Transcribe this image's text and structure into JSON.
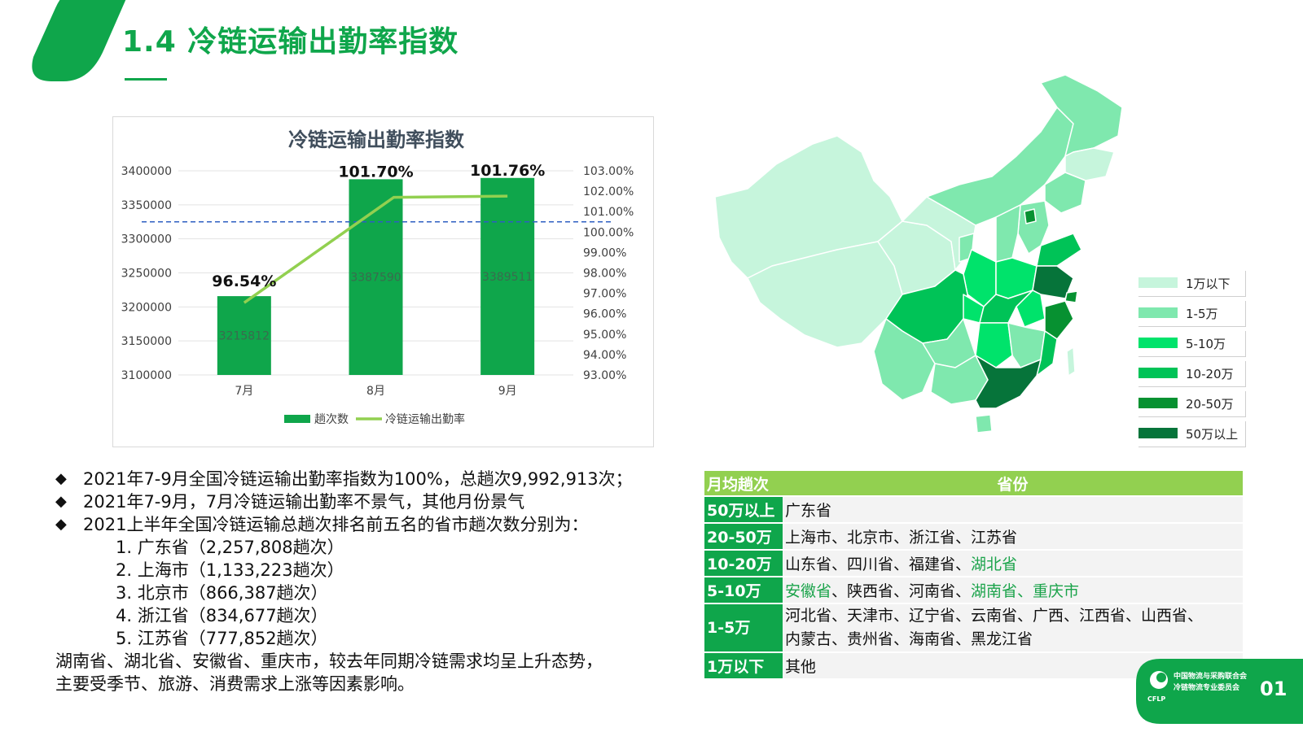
{
  "page": {
    "title": "1.4 冷链运输出勤率指数",
    "page_number": "01"
  },
  "chart_data": {
    "type": "bar",
    "title": "冷链运输出勤率指数",
    "categories": [
      "7月",
      "8月",
      "9月"
    ],
    "series": [
      {
        "name": "趟次数",
        "kind": "bar",
        "axis": "left",
        "values": [
          3215812,
          3387590,
          3389511
        ],
        "color": "#0fa64b",
        "labels": [
          "3215812",
          "3387590",
          "3389511"
        ]
      },
      {
        "name": "冷链运输出勤率",
        "kind": "line",
        "axis": "right",
        "values": [
          96.54,
          101.7,
          101.76
        ],
        "color": "#92d050",
        "labels": [
          "96.54%",
          "101.70%",
          "101.76%"
        ]
      }
    ],
    "left_axis": {
      "min": 3100000,
      "max": 3400000,
      "ticks": [
        "3100000",
        "3150000",
        "3200000",
        "3250000",
        "3300000",
        "3350000",
        "3400000"
      ]
    },
    "right_axis": {
      "min": 93,
      "max": 103,
      "ticks": [
        "93.00%",
        "94.00%",
        "95.00%",
        "96.00%",
        "97.00%",
        "98.00%",
        "99.00%",
        "100.00%",
        "101.00%",
        "102.00%",
        "103.00%"
      ]
    },
    "reference_line": {
      "value": 100.5,
      "axis": "right",
      "style": "dashed",
      "color": "#2e5fc2"
    },
    "legend_position": "bottom",
    "grid": true
  },
  "notes": {
    "bullets": [
      "2021年7-9月全国冷链运输出勤率指数为100%，总趟次9,992,913次；",
      "2021年7-9月，7月冷链运输出勤率不景气，其他月份景气",
      "2021上半年全国冷链运输总趟次排名前五名的省市趟次数分别为："
    ],
    "bullet_symbol": "◆",
    "ranking": [
      "1. 广东省（2,257,808趟次）",
      "2. 上海市（1,133,223趟次）",
      "3. 北京市（866,387趟次）",
      "4. 浙江省（834,677趟次）",
      "5. 江苏省（777,852趟次）"
    ],
    "summary": [
      "湖南省、湖北省、安徽省、重庆市，较去年同期冷链需求均呈上升态势，",
      "主要受季节、旅游、消费需求上涨等因素影响。"
    ]
  },
  "map_legend": [
    {
      "label": "1万以下",
      "color": "#c6f5dc"
    },
    {
      "label": "1-5万",
      "color": "#7fe8ae"
    },
    {
      "label": "5-10万",
      "color": "#00e36b"
    },
    {
      "label": "10-20万",
      "color": "#00c357"
    },
    {
      "label": "20-50万",
      "color": "#079131"
    },
    {
      "label": "50万以上",
      "color": "#06743a"
    }
  ],
  "table": {
    "headers": [
      "月均趟次",
      "省份"
    ],
    "rows": [
      {
        "category": "50万以上",
        "provinces": "广东省",
        "highlight": ""
      },
      {
        "category": "20-50万",
        "provinces": "上海市、北京市、浙江省、江苏省",
        "highlight": ""
      },
      {
        "category": "10-20万",
        "provinces": "山东省、四川省、福建省、",
        "highlight": "湖北省"
      },
      {
        "category": "5-10万",
        "provinces_a": "安徽省",
        "provinces_b": "、陕西省、河南省、",
        "highlight": "湖南省、重庆市"
      },
      {
        "category": "1-5万",
        "line1": "河北省、天津市、辽宁省、云南省、广西、江西省、山西省、",
        "line2": "内蒙古、贵州省、海南省、黑龙江省"
      },
      {
        "category": "1万以下",
        "provinces": "其他"
      }
    ]
  },
  "badge": {
    "org_line1": "中国物流与采购联合会",
    "org_line2": "冷链物流专业委员会",
    "abbr": "CFLP"
  }
}
